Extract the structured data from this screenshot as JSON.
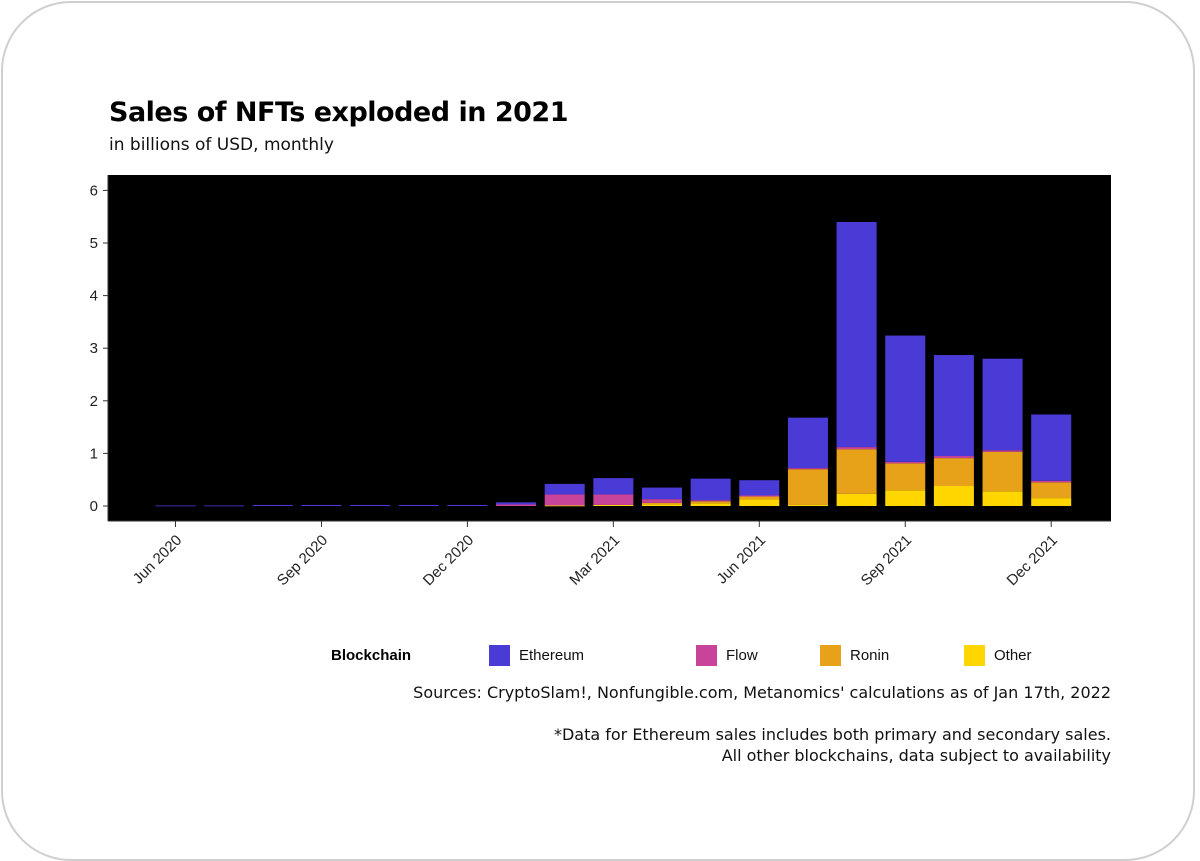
{
  "header": {
    "title": "Sales of NFTs exploded in 2021",
    "subtitle": "in billions of USD, monthly"
  },
  "legend": {
    "title": "Blockchain",
    "items": [
      {
        "label": "Ethereum",
        "color": "#4b3bd6"
      },
      {
        "label": "Flow",
        "color": "#c8439a"
      },
      {
        "label": "Ronin",
        "color": "#e8a21a"
      },
      {
        "label": "Other",
        "color": "#ffd600"
      }
    ]
  },
  "footer": {
    "source": "Sources: CryptoSlam!, Nonfungible.com, Metanomics' calculations as of Jan 17th, 2022",
    "note_line1": "*Data for Ethereum sales includes both primary and secondary sales.",
    "note_line2": "All other blockchains, data subject to availability"
  },
  "chart_data": {
    "type": "bar",
    "stacked": true,
    "categories": [
      "Jun 2020",
      "Jul 2020",
      "Aug 2020",
      "Sep 2020",
      "Oct 2020",
      "Nov 2020",
      "Dec 2020",
      "Jan 2021",
      "Feb 2021",
      "Mar 2021",
      "Apr 2021",
      "May 2021",
      "Jun 2021",
      "Jul 2021",
      "Aug 2021",
      "Sep 2021",
      "Oct 2021",
      "Nov 2021",
      "Dec 2021"
    ],
    "series": [
      {
        "name": "Other",
        "color": "#ffd600",
        "values": [
          0,
          0,
          0,
          0,
          0,
          0,
          0,
          0,
          0.01,
          0.02,
          0.03,
          0.05,
          0.13,
          0.02,
          0.23,
          0.3,
          0.38,
          0.28,
          0.15
        ]
      },
      {
        "name": "Ronin",
        "color": "#e8a21a",
        "values": [
          0,
          0,
          0,
          0,
          0,
          0,
          0,
          0,
          0,
          0,
          0.03,
          0.04,
          0.05,
          0.68,
          0.85,
          0.51,
          0.53,
          0.75,
          0.3
        ]
      },
      {
        "name": "Flow",
        "color": "#c8439a",
        "values": [
          0,
          0,
          0,
          0,
          0,
          0,
          0,
          0.03,
          0.21,
          0.2,
          0.07,
          0.02,
          0.02,
          0.02,
          0.04,
          0.03,
          0.04,
          0.03,
          0.03
        ]
      },
      {
        "name": "Ethereum",
        "color": "#4b3bd6",
        "values": [
          0.01,
          0.01,
          0.02,
          0.02,
          0.02,
          0.02,
          0.02,
          0.04,
          0.2,
          0.31,
          0.22,
          0.41,
          0.29,
          0.96,
          4.28,
          2.4,
          1.92,
          1.74,
          1.26
        ]
      }
    ],
    "xticks": [
      "Jun 2020",
      "Sep 2020",
      "Dec 2020",
      "Mar 2021",
      "Jun 2021",
      "Sep 2021",
      "Dec 2021"
    ],
    "yticks": [
      0,
      1,
      2,
      3,
      4,
      5,
      6
    ],
    "ylim": [
      -0.3,
      6.3
    ],
    "xlabel": "",
    "ylabel": "",
    "grid": false,
    "plot_background": "#000000",
    "legend_position": "bottom"
  }
}
